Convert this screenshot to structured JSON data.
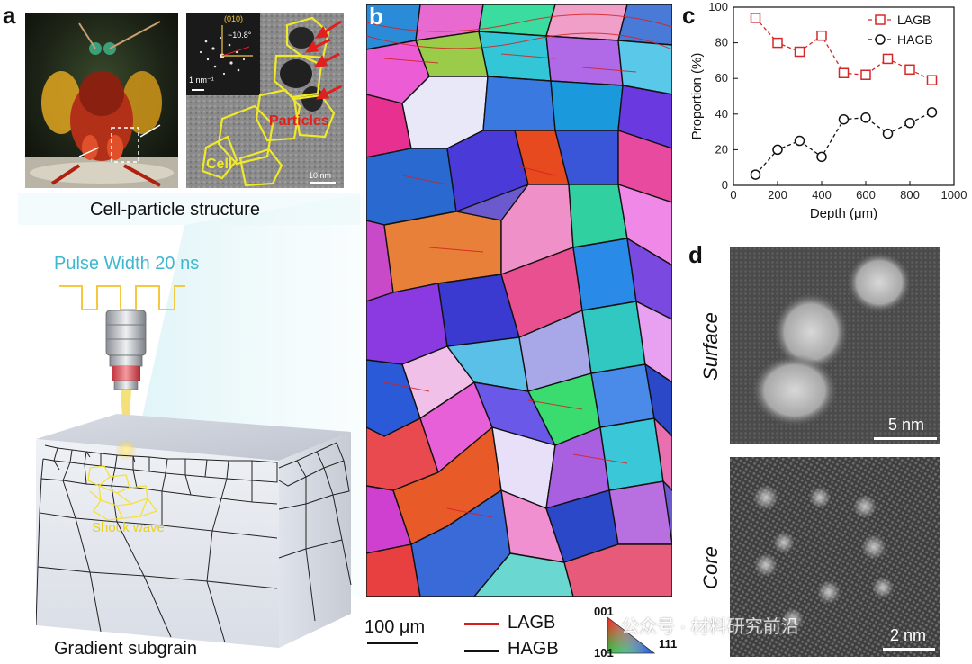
{
  "panel_a": {
    "letter": "a",
    "tem_zone_axis": "(010)",
    "tem_angle": "~10.8°",
    "tem_fft_scale": "1 nm⁻¹",
    "tem_label_particles": "Particles",
    "tem_label_cell": "Cell",
    "tem_scale": "10 nm",
    "caption_structure": "Cell-particle structure",
    "pulse_label": "Pulse Width 20 ns",
    "shock_label": "Shock wave",
    "caption_gradient": "Gradient subgrain",
    "colors": {
      "pulse": "#3db8cf",
      "laser": "#f5d64a",
      "tem_outline": "#f0e82a",
      "tem_arrow": "#e0201c"
    }
  },
  "panel_b": {
    "letter": "b",
    "scale_bar": "100 μm",
    "legend": [
      {
        "name": "LAGB",
        "color": "#d62020"
      },
      {
        "name": "HAGB",
        "color": "#111111"
      }
    ],
    "ipf_001": "001",
    "ipf_101": "101",
    "ipf_111": "111"
  },
  "panel_c": {
    "letter": "c",
    "chart_data": {
      "type": "line",
      "xlabel": "Depth (μm)",
      "ylabel": "Proportion (%)",
      "xlim": [
        0,
        1000
      ],
      "ylim": [
        0,
        100
      ],
      "xticks": [
        "0",
        "200",
        "400",
        "600",
        "800",
        "1000"
      ],
      "yticks": [
        "0",
        "20",
        "40",
        "60",
        "80",
        "100"
      ],
      "legend_position": "top-right",
      "grid": false,
      "x": [
        100,
        200,
        300,
        400,
        500,
        600,
        700,
        800,
        900
      ],
      "series": [
        {
          "name": "LAGB",
          "marker": "square",
          "color": "#d62828",
          "values": [
            94,
            80,
            75,
            84,
            63,
            62,
            71,
            65,
            59
          ]
        },
        {
          "name": "HAGB",
          "marker": "circle",
          "color": "#111111",
          "values": [
            6,
            20,
            25,
            16,
            37,
            38,
            29,
            35,
            41
          ]
        }
      ]
    }
  },
  "panel_d": {
    "letter": "d",
    "label_surface": "Surface",
    "label_core": "Core",
    "scale_surface": "5 nm",
    "scale_core": "2 nm"
  },
  "watermark": "公众号 · 材料研究前沿"
}
